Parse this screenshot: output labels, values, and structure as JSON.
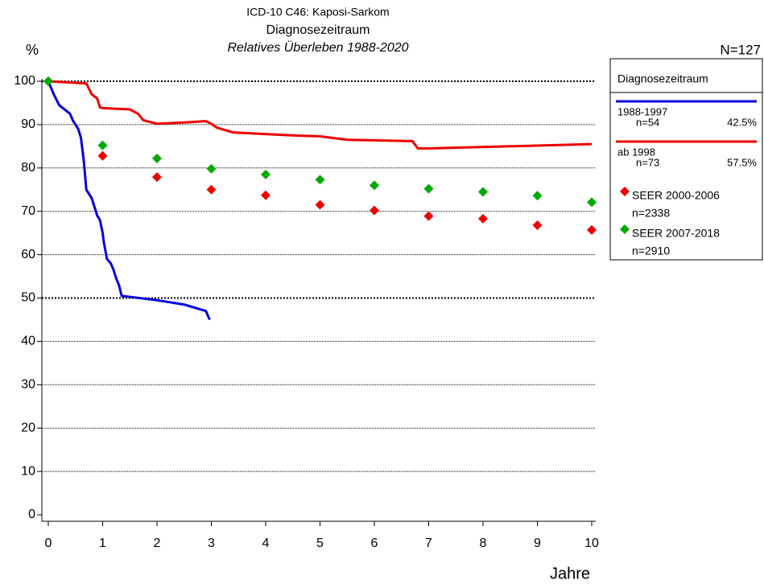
{
  "chart_data": {
    "type": "line",
    "title": "ICD-10 C46: Kaposi-Sarkom",
    "subtitle": "Diagnosezeitraum",
    "subtitle2": "Relatives Überleben 1988-2020",
    "y_label": "%",
    "x_label": "Jahre",
    "total_label": "N=127",
    "legend_title": "Diagnosezeitraum",
    "xlim": [
      0,
      10
    ],
    "xticks": [
      0,
      1,
      2,
      3,
      4,
      5,
      6,
      7,
      8,
      9,
      10
    ],
    "ylim": [
      0,
      100
    ],
    "yticks": [
      0,
      10,
      20,
      30,
      40,
      50,
      60,
      70,
      80,
      90,
      100
    ],
    "grid": true,
    "bold_grid": [
      50,
      100
    ],
    "series": [
      {
        "name": "1988-1997",
        "n_label": "n=54",
        "share_label": "42.5%",
        "color": "#0000dd",
        "style": "line",
        "x": [
          0,
          0.1,
          0.2,
          0.3,
          0.4,
          0.45,
          0.5,
          0.55,
          0.6,
          0.65,
          0.7,
          0.8,
          0.85,
          0.9,
          0.95,
          1.0,
          1.02,
          1.05,
          1.08,
          1.15,
          1.2,
          1.25,
          1.3,
          1.35,
          2,
          2.5,
          2.9,
          2.97
        ],
        "values": [
          100,
          97,
          94.5,
          93.5,
          92.5,
          91,
          90,
          89,
          87,
          82,
          75,
          73,
          71,
          69,
          68,
          65,
          63,
          61,
          59,
          58,
          56.5,
          54.5,
          53,
          50.5,
          49.5,
          48.5,
          47,
          45
        ]
      },
      {
        "name": "ab 1998",
        "n_label": "n=73",
        "share_label": "57.5%",
        "color": "#ee0000",
        "style": "line",
        "x": [
          0,
          0.7,
          0.8,
          0.9,
          0.95,
          1.0,
          1.5,
          1.65,
          1.75,
          2,
          2.5,
          2.9,
          3,
          3.1,
          3.4,
          4.5,
          5,
          5.5,
          6.7,
          6.8,
          7,
          10
        ],
        "values": [
          100,
          99.5,
          97,
          96,
          94,
          93.8,
          93.5,
          92.5,
          91,
          90.2,
          90.5,
          90.8,
          90.2,
          89.3,
          88.2,
          87.5,
          87.3,
          86.5,
          86.2,
          84.5,
          84.5,
          85.5
        ]
      },
      {
        "name": "SEER 2000-2006",
        "n_label": "n=2338",
        "color": "#ee0000",
        "style": "diamond",
        "x": [
          0,
          1,
          2,
          3,
          4,
          5,
          6,
          7,
          8,
          9,
          10
        ],
        "values": [
          100,
          82.8,
          77.9,
          75.0,
          73.7,
          71.5,
          70.2,
          68.9,
          68.3,
          66.8,
          65.7
        ]
      },
      {
        "name": "SEER 2007-2018",
        "n_label": "n=2910",
        "color": "#00aa00",
        "style": "diamond",
        "x": [
          0,
          1,
          2,
          3,
          4,
          5,
          6,
          7,
          8,
          9,
          10
        ],
        "values": [
          100,
          85.2,
          82.2,
          79.8,
          78.5,
          77.3,
          76.0,
          75.2,
          74.5,
          73.6,
          72.1
        ]
      }
    ]
  }
}
